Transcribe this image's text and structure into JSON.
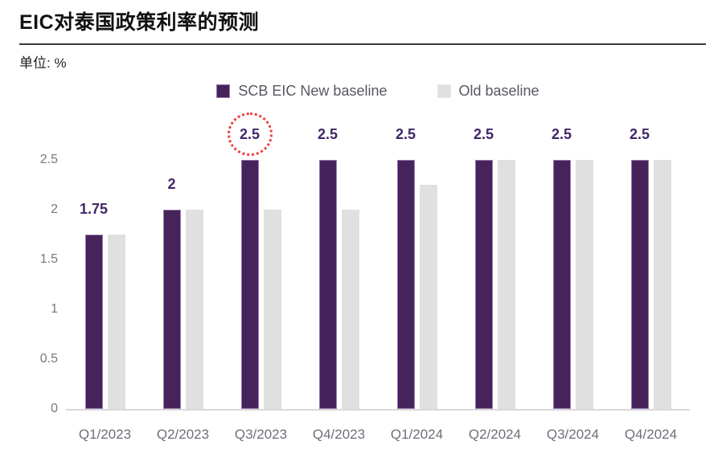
{
  "chart_data": {
    "type": "bar",
    "title": "EIC对泰国政策利率的预测",
    "unit_label": "单位: %",
    "categories": [
      "Q1/2023",
      "Q2/2023",
      "Q3/2023",
      "Q4/2023",
      "Q1/2024",
      "Q2/2024",
      "Q3/2024",
      "Q4/2024"
    ],
    "series": [
      {
        "name": "SCB EIC New baseline",
        "color": "#46235a",
        "values": [
          1.75,
          2,
          2.5,
          2.5,
          2.5,
          2.5,
          2.5,
          2.5
        ]
      },
      {
        "name": "Old baseline",
        "color": "#e0e0e0",
        "values": [
          1.75,
          2,
          2,
          2,
          2.25,
          2.5,
          2.5,
          2.5
        ]
      }
    ],
    "data_labels": [
      "1.75",
      "2",
      "2.5",
      "2.5",
      "2.5",
      "2.5",
      "2.5",
      "2.5"
    ],
    "highlight": {
      "category_index": 2,
      "style": "dotted-red-circle",
      "color": "#ee4141"
    },
    "ylim": [
      0,
      2.5
    ],
    "yticks": [
      0,
      0.5,
      1,
      1.5,
      2,
      2.5
    ],
    "grid": false,
    "legend_position": "top-center",
    "label_color": "#412767",
    "axis_line_color": "#d9d9d9"
  }
}
